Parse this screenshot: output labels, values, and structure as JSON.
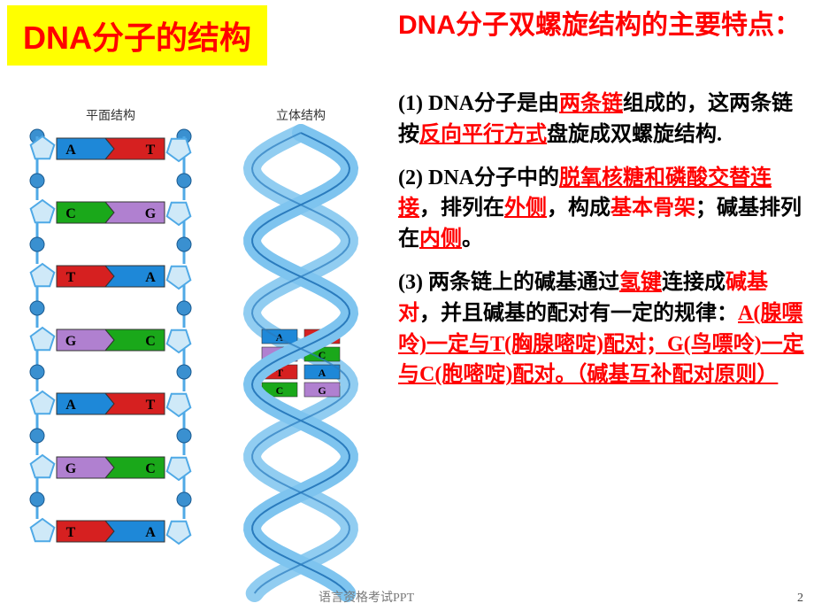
{
  "title": "DNA分子的结构",
  "heading": "DNA分子双螺旋结构的主要特点：",
  "flat_label": "平面结构",
  "helix_label": "立体结构",
  "para1": {
    "num": "(1) ",
    "a": "DNA分子是由",
    "b": "两条链",
    "c": "组成的，这两条链按",
    "d": "反向平行方式",
    "e": "盘旋成双螺旋结构."
  },
  "para2": {
    "num": "(2) ",
    "a": "DNA分子中的",
    "b": "脱氧核糖和磷酸交替连接",
    "c": "，排列在",
    "d": "外侧",
    "e": "，构成",
    "f": "基本骨架",
    "g": "；碱基排列在",
    "h": "内侧",
    "i": "。"
  },
  "para3": {
    "num": "(3) ",
    "a": "两条链上的碱基通过",
    "b": "氢键",
    "c": "连接成",
    "d": "碱基对",
    "e": "，并且碱基的配对有一定的规律：",
    "f": "A(腺嘌呤)一定与T(胸腺嘧啶)配对；G(鸟嘌呤)一定与C(胞嘧啶)配对。（碱基互补配对原则）"
  },
  "footer": "语言资格考试PPT",
  "pagenum": "2",
  "flat_pairs": [
    {
      "l": "A",
      "lc": "#1e88d8",
      "r": "T",
      "rc": "#d62020"
    },
    {
      "l": "C",
      "lc": "#1aa81a",
      "r": "G",
      "rc": "#b080d0"
    },
    {
      "l": "T",
      "lc": "#d62020",
      "r": "A",
      "rc": "#1e88d8"
    },
    {
      "l": "G",
      "lc": "#b080d0",
      "r": "C",
      "rc": "#1aa81a"
    },
    {
      "l": "A",
      "lc": "#1e88d8",
      "r": "T",
      "rc": "#d62020"
    },
    {
      "l": "G",
      "lc": "#b080d0",
      "r": "C",
      "rc": "#1aa81a"
    },
    {
      "l": "T",
      "lc": "#d62020",
      "r": "A",
      "rc": "#1e88d8"
    }
  ],
  "helix_pairs": [
    {
      "l": "A",
      "lc": "#1e88d8",
      "r": "T",
      "rc": "#d62020"
    },
    {
      "l": "G",
      "lc": "#b080d0",
      "r": "C",
      "rc": "#1aa81a"
    },
    {
      "l": "T",
      "lc": "#d62020",
      "r": "A",
      "rc": "#1e88d8"
    },
    {
      "l": "C",
      "lc": "#1aa81a",
      "r": "G",
      "rc": "#b080d0"
    }
  ],
  "colors": {
    "backbone": "#4fa9e6",
    "phosphate": "#3a90d0",
    "helix_stroke": "#2a7bbd",
    "helix_fill": "#7ec4ef"
  }
}
